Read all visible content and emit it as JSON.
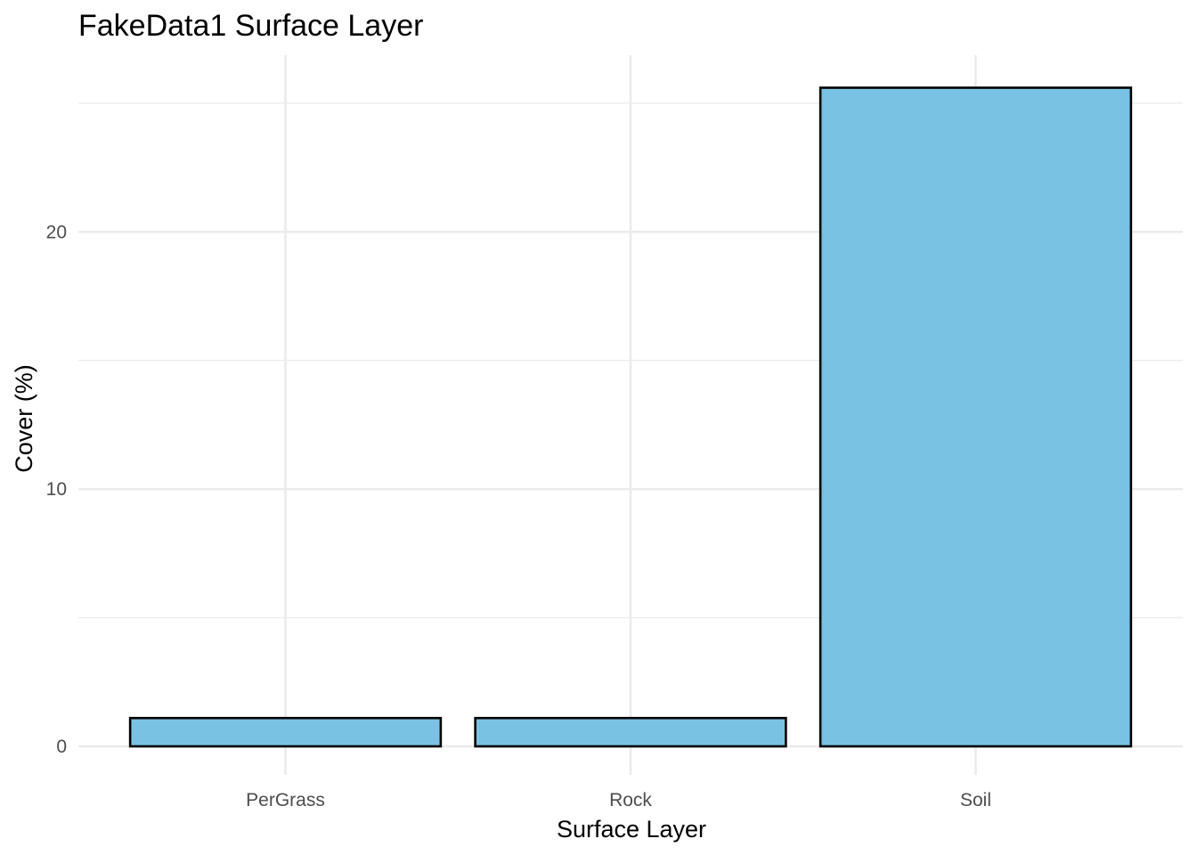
{
  "chart_data": {
    "type": "bar",
    "title": "FakeData1 Surface Layer",
    "xlabel": "Surface Layer",
    "ylabel": "Cover (%)",
    "categories": [
      "PerGrass",
      "Rock",
      "Soil"
    ],
    "values": [
      1.1,
      1.1,
      25.6
    ],
    "ylim": [
      0,
      25.6
    ],
    "yticks": [
      0,
      10,
      20
    ],
    "ytick_labels": [
      "0",
      "10",
      "20"
    ],
    "grid": true,
    "legend": "none",
    "colors": {
      "bar_fill": "#7AC2E4",
      "bar_outline": "#000000",
      "grid": "#EBEBEB",
      "tick_text": "#4D4D4D"
    }
  }
}
